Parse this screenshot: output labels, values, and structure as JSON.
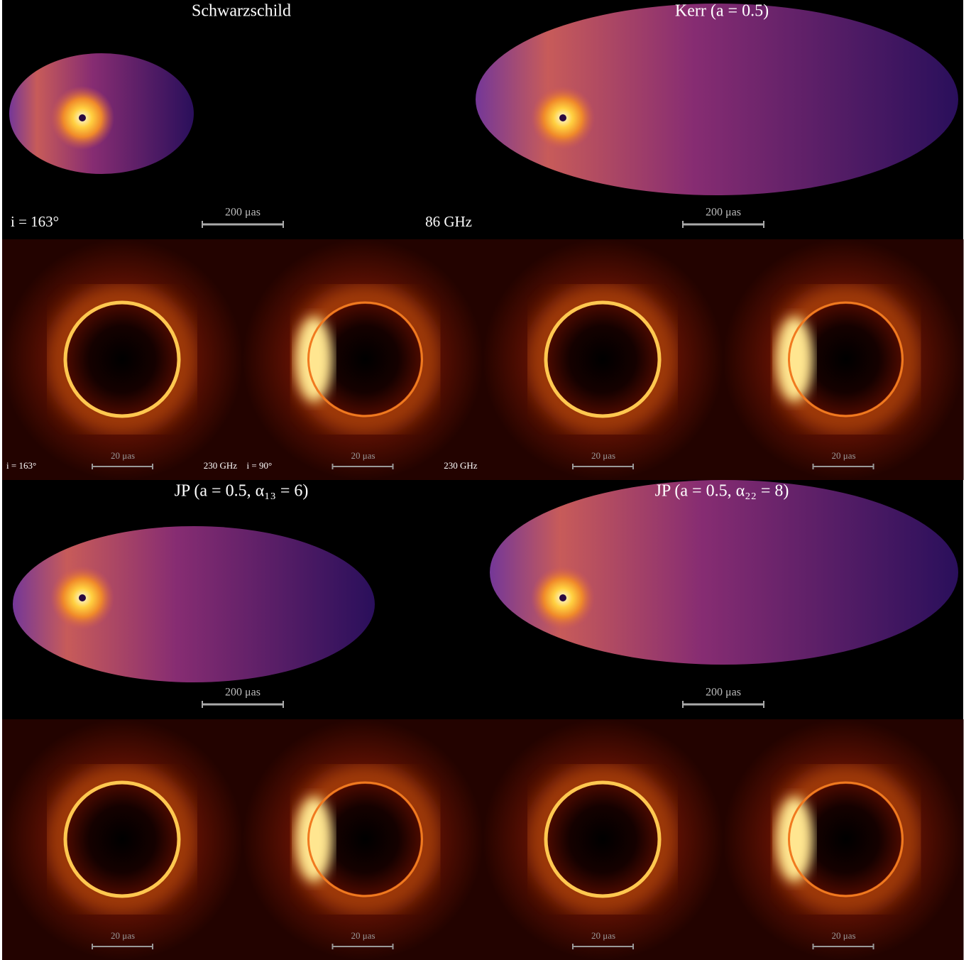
{
  "figure": {
    "models": [
      {
        "title": "Schwarzschild",
        "jet": {
          "scale": "200 μas",
          "inclination": "i = 163°",
          "frequency": "86 GHz"
        },
        "rings": [
          {
            "scale": "20 μas",
            "inclination": "i = 163°",
            "frequency": "230 GHz"
          },
          {
            "scale": "20 μas",
            "inclination": "i = 90°",
            "frequency": "230 GHz"
          }
        ]
      },
      {
        "title": "Kerr (a = 0.5)",
        "jet": {
          "scale": "200 μas"
        },
        "rings": [
          {
            "scale": "20 μas"
          },
          {
            "scale": "20 μas"
          }
        ]
      },
      {
        "title": "JP (a = 0.5, α₁₃ = 6)",
        "jet": {
          "scale": "200 μas"
        },
        "rings": [
          {
            "scale": "20 μas"
          },
          {
            "scale": "20 μas"
          }
        ]
      },
      {
        "title": "JP (a = 0.5, α₂₂ = 8)",
        "jet": {
          "scale": "200 μas"
        },
        "rings": [
          {
            "scale": "20 μas"
          },
          {
            "scale": "20 μas"
          }
        ]
      }
    ]
  }
}
